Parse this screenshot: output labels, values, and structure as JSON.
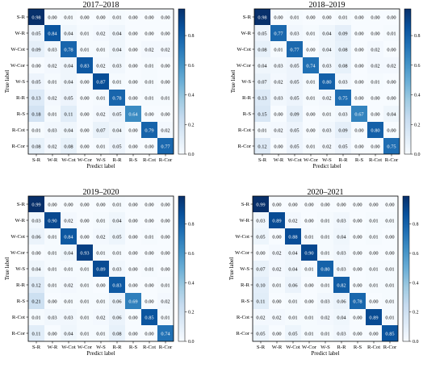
{
  "chart_data": [
    {
      "type": "heatmap",
      "title": "2017–2018",
      "xlabel": "Predict label",
      "ylabel": "True label",
      "categories": [
        "S-R",
        "W-R",
        "W-Cot",
        "W-Cor",
        "W-S",
        "R-R",
        "R-S",
        "R-Cot",
        "R-Cor"
      ],
      "colorbar": {
        "min": 0,
        "max": 0.98,
        "ticks": [
          "0.0",
          "0.2",
          "0.4",
          "0.6",
          "0.8"
        ]
      },
      "values": [
        [
          "0.98",
          "0.00",
          "0.01",
          "0.00",
          "0.00",
          "0.01",
          "0.00",
          "0.00",
          "0.00"
        ],
        [
          "0.05",
          "0.84",
          "0.04",
          "0.01",
          "0.02",
          "0.04",
          "0.00",
          "0.00",
          "0.00"
        ],
        [
          "0.09",
          "0.03",
          "0.78",
          "0.01",
          "0.01",
          "0.04",
          "0.00",
          "0.02",
          "0.02"
        ],
        [
          "0.00",
          "0.02",
          "0.04",
          "0.83",
          "0.02",
          "0.03",
          "0.00",
          "0.01",
          "0.00"
        ],
        [
          "0.05",
          "0.01",
          "0.04",
          "0.00",
          "0.87",
          "0.01",
          "0.00",
          "0.01",
          "0.00"
        ],
        [
          "0.13",
          "0.02",
          "0.05",
          "0.00",
          "0.01",
          "0.78",
          "0.00",
          "0.01",
          "0.01"
        ],
        [
          "0.18",
          "0.01",
          "0.11",
          "0.00",
          "0.02",
          "0.05",
          "0.64",
          "0.00",
          "0.00"
        ],
        [
          "0.01",
          "0.03",
          "0.04",
          "0.00",
          "0.07",
          "0.04",
          "0.00",
          "0.79",
          "0.02"
        ],
        [
          "0.08",
          "0.02",
          "0.08",
          "0.00",
          "0.01",
          "0.05",
          "0.00",
          "0.00",
          "0.77"
        ]
      ]
    },
    {
      "type": "heatmap",
      "title": "2018–2019",
      "xlabel": "Predict label",
      "ylabel": "True label",
      "categories": [
        "S-R",
        "W-R",
        "W-Cot",
        "W-Cor",
        "W-S",
        "R-R",
        "R-S",
        "R-Cot",
        "R-Cor"
      ],
      "colorbar": {
        "min": 0,
        "max": 0.98,
        "ticks": [
          "0.0",
          "0.2",
          "0.4",
          "0.6",
          "0.8"
        ]
      },
      "values": [
        [
          "0.98",
          "0.00",
          "0.01",
          "0.00",
          "0.00",
          "0.01",
          "0.00",
          "0.00",
          "0.00"
        ],
        [
          "0.05",
          "0.77",
          "0.03",
          "0.01",
          "0.04",
          "0.09",
          "0.00",
          "0.00",
          "0.01"
        ],
        [
          "0.08",
          "0.01",
          "0.77",
          "0.00",
          "0.04",
          "0.08",
          "0.00",
          "0.02",
          "0.00"
        ],
        [
          "0.04",
          "0.03",
          "0.05",
          "0.74",
          "0.03",
          "0.08",
          "0.00",
          "0.02",
          "0.02"
        ],
        [
          "0.07",
          "0.02",
          "0.05",
          "0.01",
          "0.80",
          "0.03",
          "0.00",
          "0.01",
          "0.00"
        ],
        [
          "0.13",
          "0.03",
          "0.05",
          "0.01",
          "0.02",
          "0.75",
          "0.00",
          "0.00",
          "0.00"
        ],
        [
          "0.15",
          "0.00",
          "0.09",
          "0.00",
          "0.01",
          "0.03",
          "0.67",
          "0.00",
          "0.04"
        ],
        [
          "0.01",
          "0.02",
          "0.05",
          "0.00",
          "0.03",
          "0.09",
          "0.00",
          "0.80",
          "0.00"
        ],
        [
          "0.12",
          "0.00",
          "0.05",
          "0.01",
          "0.02",
          "0.05",
          "0.00",
          "0.00",
          "0.75"
        ]
      ]
    },
    {
      "type": "heatmap",
      "title": "2019–2020",
      "xlabel": "Predict label",
      "ylabel": "True label",
      "categories": [
        "S-R",
        "W-R",
        "W-Cot",
        "W-Cor",
        "W-S",
        "R-R",
        "R-S",
        "R-Cot",
        "R-Cor"
      ],
      "colorbar": {
        "min": 0,
        "max": 0.99,
        "ticks": [
          "0.0",
          "0.2",
          "0.4",
          "0.6",
          "0.8"
        ]
      },
      "values": [
        [
          "0.99",
          "0.00",
          "0.00",
          "0.00",
          "0.00",
          "0.01",
          "0.00",
          "0.00",
          "0.00"
        ],
        [
          "0.03",
          "0.90",
          "0.02",
          "0.00",
          "0.01",
          "0.04",
          "0.00",
          "0.00",
          "0.00"
        ],
        [
          "0.06",
          "0.01",
          "0.84",
          "0.00",
          "0.02",
          "0.05",
          "0.00",
          "0.01",
          "0.00"
        ],
        [
          "0.00",
          "0.01",
          "0.04",
          "0.93",
          "0.01",
          "0.01",
          "0.00",
          "0.00",
          "0.00"
        ],
        [
          "0.04",
          "0.01",
          "0.01",
          "0.01",
          "0.89",
          "0.03",
          "0.00",
          "0.01",
          "0.00"
        ],
        [
          "0.12",
          "0.01",
          "0.02",
          "0.01",
          "0.00",
          "0.83",
          "0.00",
          "0.00",
          "0.01"
        ],
        [
          "0.21",
          "0.00",
          "0.01",
          "0.01",
          "0.01",
          "0.06",
          "0.69",
          "0.00",
          "0.02"
        ],
        [
          "0.01",
          "0.03",
          "0.03",
          "0.01",
          "0.02",
          "0.06",
          "0.00",
          "0.85",
          "0.01"
        ],
        [
          "0.11",
          "0.00",
          "0.04",
          "0.01",
          "0.01",
          "0.08",
          "0.00",
          "0.00",
          "0.74"
        ]
      ]
    },
    {
      "type": "heatmap",
      "title": "2020–2021",
      "xlabel": "Predict label",
      "ylabel": "True label",
      "categories": [
        "S-R",
        "W-R",
        "W-Cot",
        "W-Cor",
        "W-S",
        "R-R",
        "R-S",
        "R-Cot",
        "R-Cor"
      ],
      "colorbar": {
        "min": 0,
        "max": 0.99,
        "ticks": [
          "0.0",
          "0.2",
          "0.4",
          "0.6",
          "0.8"
        ]
      },
      "values": [
        [
          "0.99",
          "0.00",
          "0.00",
          "0.00",
          "0.00",
          "0.00",
          "0.00",
          "0.00",
          "0.00"
        ],
        [
          "0.03",
          "0.89",
          "0.02",
          "0.00",
          "0.01",
          "0.03",
          "0.00",
          "0.01",
          "0.01"
        ],
        [
          "0.05",
          "0.00",
          "0.88",
          "0.01",
          "0.01",
          "0.04",
          "0.00",
          "0.01",
          "0.00"
        ],
        [
          "0.00",
          "0.02",
          "0.04",
          "0.90",
          "0.01",
          "0.03",
          "0.00",
          "0.00",
          "0.00"
        ],
        [
          "0.07",
          "0.02",
          "0.04",
          "0.01",
          "0.80",
          "0.03",
          "0.00",
          "0.01",
          "0.01"
        ],
        [
          "0.10",
          "0.01",
          "0.06",
          "0.00",
          "0.01",
          "0.82",
          "0.00",
          "0.01",
          "0.01"
        ],
        [
          "0.11",
          "0.00",
          "0.01",
          "0.00",
          "0.03",
          "0.06",
          "0.78",
          "0.00",
          "0.01"
        ],
        [
          "0.02",
          "0.02",
          "0.01",
          "0.01",
          "0.02",
          "0.04",
          "0.00",
          "0.89",
          "0.01"
        ],
        [
          "0.05",
          "0.00",
          "0.05",
          "0.01",
          "0.01",
          "0.03",
          "0.00",
          "0.00",
          "0.85"
        ]
      ]
    }
  ],
  "colors": {
    "low": "#f7fbff",
    "high": "#08306b",
    "text_dark": "#000000",
    "text_light": "#ffffff"
  }
}
